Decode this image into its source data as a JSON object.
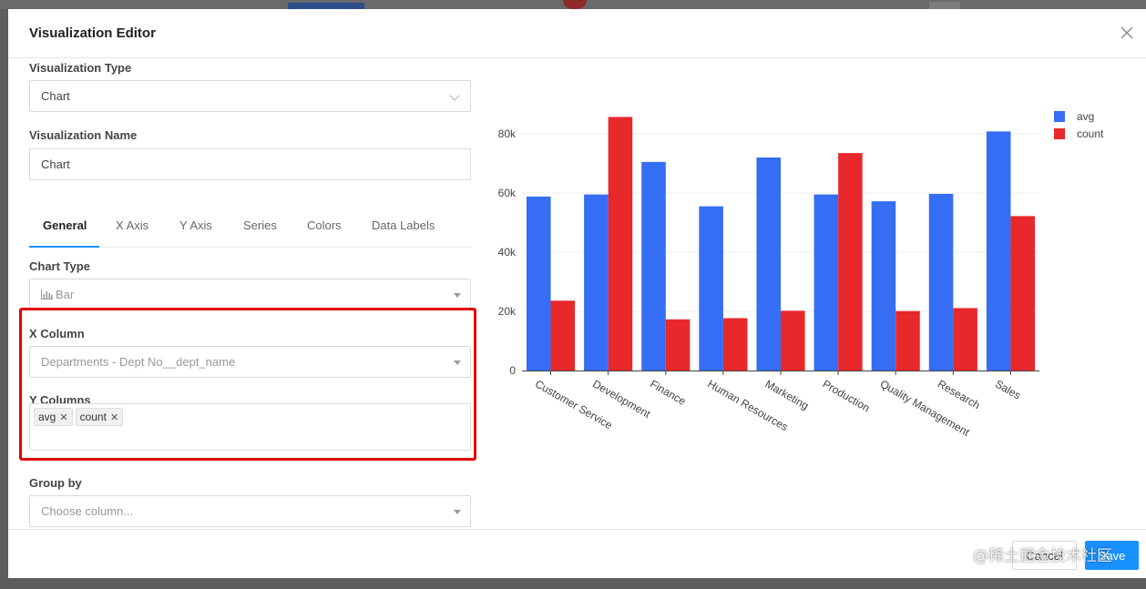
{
  "modal": {
    "title": "Visualization Editor"
  },
  "form": {
    "viz_type": {
      "label": "Visualization Type",
      "value": "Chart"
    },
    "viz_name": {
      "label": "Visualization Name",
      "value": "Chart"
    },
    "tabs": [
      {
        "label": "General"
      },
      {
        "label": "X Axis"
      },
      {
        "label": "Y Axis"
      },
      {
        "label": "Series"
      },
      {
        "label": "Colors"
      },
      {
        "label": "Data Labels"
      }
    ],
    "chart_type": {
      "label": "Chart Type",
      "value": "Bar",
      "icon": "bar-chart-icon"
    },
    "x_column": {
      "label": "X Column",
      "value": "Departments - Dept No__dept_name"
    },
    "y_columns": {
      "label": "Y Columns",
      "tags": [
        "avg",
        "count"
      ]
    },
    "group_by": {
      "label": "Group by",
      "placeholder": "Choose column..."
    }
  },
  "footer": {
    "cancel_label": "Cancel",
    "save_label": "Save"
  },
  "watermark": "@稀土掘金技术社区",
  "colors": {
    "avg": "#356df5",
    "count": "#e8282b",
    "highlight": "#e10000",
    "accent": "#1890ff"
  },
  "chart_data": {
    "type": "bar",
    "categories": [
      "Customer Service",
      "Development",
      "Finance",
      "Human Resources",
      "Marketing",
      "Production",
      "Quality Management",
      "Research",
      "Sales"
    ],
    "series": [
      {
        "name": "avg",
        "values": [
          58800,
          59500,
          70500,
          55500,
          72000,
          59500,
          57200,
          59700,
          80800
        ]
      },
      {
        "name": "count",
        "values": [
          23600,
          85700,
          17300,
          17700,
          20200,
          73500,
          20100,
          21100,
          52200
        ]
      }
    ],
    "yticks": [
      "0",
      "20k",
      "40k",
      "60k",
      "80k"
    ],
    "ylim": [
      0,
      80000
    ],
    "grid": true,
    "legend": "top-right"
  }
}
